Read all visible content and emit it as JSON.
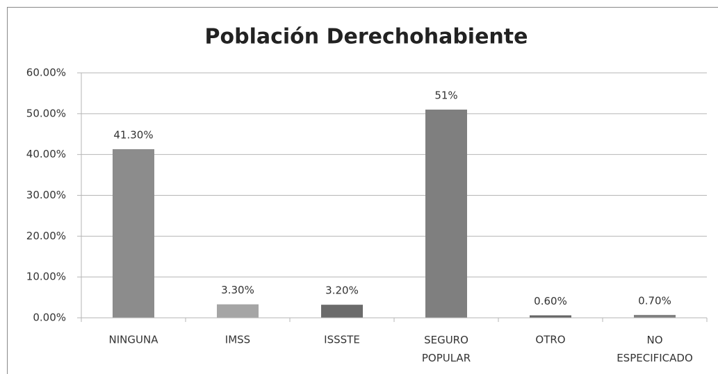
{
  "chart_data": {
    "type": "bar",
    "title": "Población Derechohabiente",
    "categories": [
      "NINGUNA",
      "IMSS",
      "ISSSTE",
      "SEGURO POPULAR",
      "OTRO",
      "NO ESPECIFICADO"
    ],
    "values": [
      41.3,
      3.3,
      3.2,
      51,
      0.6,
      0.7
    ],
    "value_labels": [
      "41.30%",
      "3.30%",
      "3.20%",
      "51%",
      "0.60%",
      "0.70%"
    ],
    "colors": [
      "#8c8c8c",
      "#a5a5a5",
      "#6b6b6b",
      "#7f7f7f",
      "#666666",
      "#7f7f7f"
    ],
    "ylim": [
      0,
      60
    ],
    "yticks": [
      {
        "value": 0,
        "label": "0.00%"
      },
      {
        "value": 10,
        "label": "10.00%"
      },
      {
        "value": 20,
        "label": "20.00%"
      },
      {
        "value": 30,
        "label": "30.00%"
      },
      {
        "value": 40,
        "label": "40.00%"
      },
      {
        "value": 50,
        "label": "50.00%"
      },
      {
        "value": 60,
        "label": "60.00%"
      }
    ],
    "grid": true
  }
}
